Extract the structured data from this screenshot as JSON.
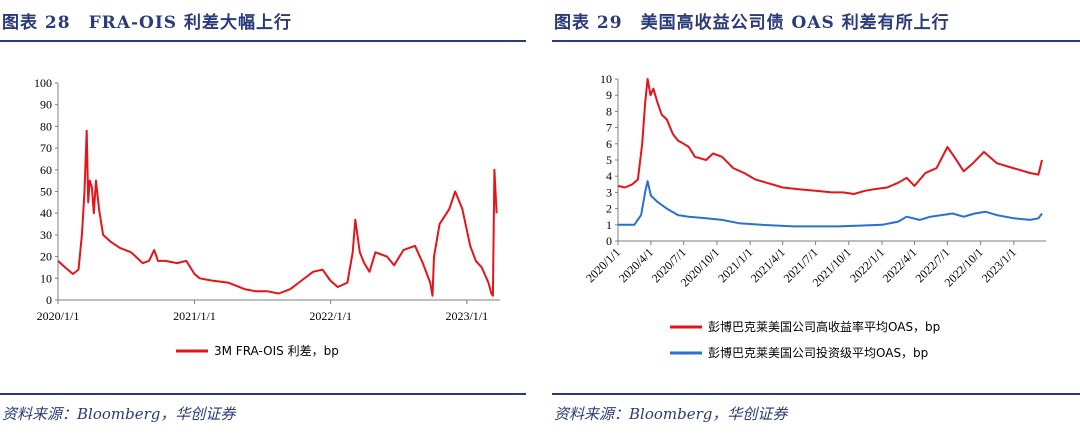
{
  "left": {
    "title": "图表 28　FRA-OIS 利差大幅上行",
    "source": "资料来源：Bloomberg，华创证券",
    "legend_label": "3M FRA-OIS 利差，bp"
  },
  "right": {
    "title": "图表 29　美国高收益公司债 OAS 利差有所上行",
    "source": "资料来源：Bloomberg，华创证券",
    "legend_label_1": "彭博巴克莱美国公司高收益率平均OAS，bp",
    "legend_label_2": "彭博巴克莱美国公司投资级平均OAS，bp"
  },
  "chart_data": [
    {
      "type": "line",
      "title": "图表 28　FRA-OIS 利差大幅上行",
      "xlabel": "",
      "ylabel": "",
      "x_ticks": [
        "2020/1/1",
        "2021/1/1",
        "2022/1/1",
        "2023/1/1"
      ],
      "y_ticks": [
        0,
        10,
        20,
        30,
        40,
        50,
        60,
        70,
        80,
        90,
        100
      ],
      "xlim": [
        "2020-01-01",
        "2023-03-31"
      ],
      "ylim": [
        0,
        100
      ],
      "grid": false,
      "legend_position": "bottom",
      "series": [
        {
          "name": "3M FRA-OIS 利差，bp",
          "color": "#e3151a",
          "points": [
            [
              "2020-01-01",
              18
            ],
            [
              "2020-01-20",
              15
            ],
            [
              "2020-02-10",
              12
            ],
            [
              "2020-02-25",
              14
            ],
            [
              "2020-03-05",
              30
            ],
            [
              "2020-03-12",
              50
            ],
            [
              "2020-03-18",
              78
            ],
            [
              "2020-03-22",
              45
            ],
            [
              "2020-03-26",
              55
            ],
            [
              "2020-04-01",
              52
            ],
            [
              "2020-04-06",
              40
            ],
            [
              "2020-04-12",
              55
            ],
            [
              "2020-04-20",
              42
            ],
            [
              "2020-05-01",
              30
            ],
            [
              "2020-05-20",
              27
            ],
            [
              "2020-06-15",
              24
            ],
            [
              "2020-07-15",
              22
            ],
            [
              "2020-08-15",
              17
            ],
            [
              "2020-09-01",
              18
            ],
            [
              "2020-09-15",
              23
            ],
            [
              "2020-09-25",
              18
            ],
            [
              "2020-10-15",
              18
            ],
            [
              "2020-11-15",
              17
            ],
            [
              "2020-12-10",
              18
            ],
            [
              "2021-01-01",
              12
            ],
            [
              "2021-01-15",
              10
            ],
            [
              "2021-02-15",
              9
            ],
            [
              "2021-04-01",
              8
            ],
            [
              "2021-05-15",
              5
            ],
            [
              "2021-06-15",
              4
            ],
            [
              "2021-07-15",
              4
            ],
            [
              "2021-08-15",
              3
            ],
            [
              "2021-09-15",
              5
            ],
            [
              "2021-10-15",
              9
            ],
            [
              "2021-11-15",
              13
            ],
            [
              "2021-12-10",
              14
            ],
            [
              "2021-12-31",
              9
            ],
            [
              "2022-01-20",
              6
            ],
            [
              "2022-02-15",
              8
            ],
            [
              "2022-03-01",
              22
            ],
            [
              "2022-03-08",
              37
            ],
            [
              "2022-03-20",
              22
            ],
            [
              "2022-04-01",
              17
            ],
            [
              "2022-04-15",
              13
            ],
            [
              "2022-05-01",
              22
            ],
            [
              "2022-06-01",
              20
            ],
            [
              "2022-06-20",
              16
            ],
            [
              "2022-07-15",
              23
            ],
            [
              "2022-08-15",
              25
            ],
            [
              "2022-09-05",
              17
            ],
            [
              "2022-09-25",
              8
            ],
            [
              "2022-10-01",
              2
            ],
            [
              "2022-10-05",
              20
            ],
            [
              "2022-10-20",
              35
            ],
            [
              "2022-11-15",
              42
            ],
            [
              "2022-12-01",
              50
            ],
            [
              "2022-12-20",
              42
            ],
            [
              "2023-01-10",
              25
            ],
            [
              "2023-01-25",
              18
            ],
            [
              "2023-02-10",
              15
            ],
            [
              "2023-02-28",
              8
            ],
            [
              "2023-03-08",
              3
            ],
            [
              "2023-03-12",
              2
            ],
            [
              "2023-03-16",
              60
            ],
            [
              "2023-03-22",
              40
            ]
          ]
        }
      ]
    },
    {
      "type": "line",
      "title": "图表 29　美国高收益公司债 OAS 利差有所上行",
      "xlabel": "",
      "ylabel": "",
      "x_ticks": [
        "2020/1/1",
        "2020/4/1",
        "2020/7/1",
        "2020/10/1",
        "2021/1/1",
        "2021/4/1",
        "2021/7/1",
        "2021/10/1",
        "2022/1/1",
        "2022/4/1",
        "2022/7/1",
        "2022/10/1",
        "2023/1/1"
      ],
      "y_ticks": [
        0,
        1,
        2,
        3,
        4,
        5,
        6,
        7,
        8,
        9,
        10
      ],
      "xlim": [
        "2020-01-01",
        "2023-03-31"
      ],
      "ylim": [
        0,
        10
      ],
      "grid": false,
      "legend_position": "bottom",
      "series": [
        {
          "name": "彭博巴克莱美国公司高收益率平均OAS，bp",
          "color": "#e3151a",
          "points": [
            [
              "2020-01-01",
              3.4
            ],
            [
              "2020-01-20",
              3.3
            ],
            [
              "2020-02-10",
              3.5
            ],
            [
              "2020-02-25",
              3.8
            ],
            [
              "2020-03-08",
              6.0
            ],
            [
              "2020-03-16",
              8.5
            ],
            [
              "2020-03-23",
              10.0
            ],
            [
              "2020-03-31",
              9.0
            ],
            [
              "2020-04-08",
              9.4
            ],
            [
              "2020-04-20",
              8.5
            ],
            [
              "2020-05-01",
              7.8
            ],
            [
              "2020-05-15",
              7.5
            ],
            [
              "2020-06-01",
              6.6
            ],
            [
              "2020-06-15",
              6.2
            ],
            [
              "2020-07-01",
              6.0
            ],
            [
              "2020-07-15",
              5.8
            ],
            [
              "2020-08-01",
              5.2
            ],
            [
              "2020-09-01",
              5.0
            ],
            [
              "2020-09-20",
              5.4
            ],
            [
              "2020-10-15",
              5.2
            ],
            [
              "2020-11-15",
              4.5
            ],
            [
              "2020-12-15",
              4.2
            ],
            [
              "2021-01-15",
              3.8
            ],
            [
              "2021-02-15",
              3.6
            ],
            [
              "2021-04-01",
              3.3
            ],
            [
              "2021-05-15",
              3.2
            ],
            [
              "2021-07-01",
              3.1
            ],
            [
              "2021-08-15",
              3.0
            ],
            [
              "2021-09-15",
              3.0
            ],
            [
              "2021-10-15",
              2.9
            ],
            [
              "2021-11-15",
              3.1
            ],
            [
              "2021-12-10",
              3.2
            ],
            [
              "2022-01-15",
              3.3
            ],
            [
              "2022-02-15",
              3.6
            ],
            [
              "2022-03-10",
              3.9
            ],
            [
              "2022-04-01",
              3.4
            ],
            [
              "2022-05-01",
              4.2
            ],
            [
              "2022-06-01",
              4.5
            ],
            [
              "2022-07-01",
              5.8
            ],
            [
              "2022-07-20",
              5.2
            ],
            [
              "2022-08-15",
              4.3
            ],
            [
              "2022-09-10",
              4.8
            ],
            [
              "2022-10-10",
              5.5
            ],
            [
              "2022-11-15",
              4.8
            ],
            [
              "2022-12-15",
              4.6
            ],
            [
              "2023-01-15",
              4.4
            ],
            [
              "2023-02-15",
              4.2
            ],
            [
              "2023-03-10",
              4.1
            ],
            [
              "2023-03-20",
              5.0
            ]
          ]
        },
        {
          "name": "彭博巴克莱美国公司投资级平均OAS，bp",
          "color": "#2a6fd1",
          "points": [
            [
              "2020-01-01",
              1.0
            ],
            [
              "2020-02-15",
              1.0
            ],
            [
              "2020-03-05",
              1.6
            ],
            [
              "2020-03-16",
              3.0
            ],
            [
              "2020-03-23",
              3.7
            ],
            [
              "2020-04-01",
              2.8
            ],
            [
              "2020-04-20",
              2.4
            ],
            [
              "2020-05-15",
              2.0
            ],
            [
              "2020-06-15",
              1.6
            ],
            [
              "2020-07-15",
              1.5
            ],
            [
              "2020-09-01",
              1.4
            ],
            [
              "2020-10-15",
              1.3
            ],
            [
              "2020-12-01",
              1.1
            ],
            [
              "2021-02-01",
              1.0
            ],
            [
              "2021-05-01",
              0.9
            ],
            [
              "2021-07-01",
              0.9
            ],
            [
              "2021-09-01",
              0.9
            ],
            [
              "2021-11-01",
              0.95
            ],
            [
              "2022-01-01",
              1.0
            ],
            [
              "2022-02-15",
              1.2
            ],
            [
              "2022-03-10",
              1.5
            ],
            [
              "2022-04-15",
              1.3
            ],
            [
              "2022-05-15",
              1.5
            ],
            [
              "2022-06-15",
              1.6
            ],
            [
              "2022-07-15",
              1.7
            ],
            [
              "2022-08-15",
              1.5
            ],
            [
              "2022-09-15",
              1.7
            ],
            [
              "2022-10-15",
              1.8
            ],
            [
              "2022-11-15",
              1.6
            ],
            [
              "2023-01-01",
              1.4
            ],
            [
              "2023-02-15",
              1.3
            ],
            [
              "2023-03-10",
              1.4
            ],
            [
              "2023-03-20",
              1.7
            ]
          ]
        }
      ]
    }
  ]
}
